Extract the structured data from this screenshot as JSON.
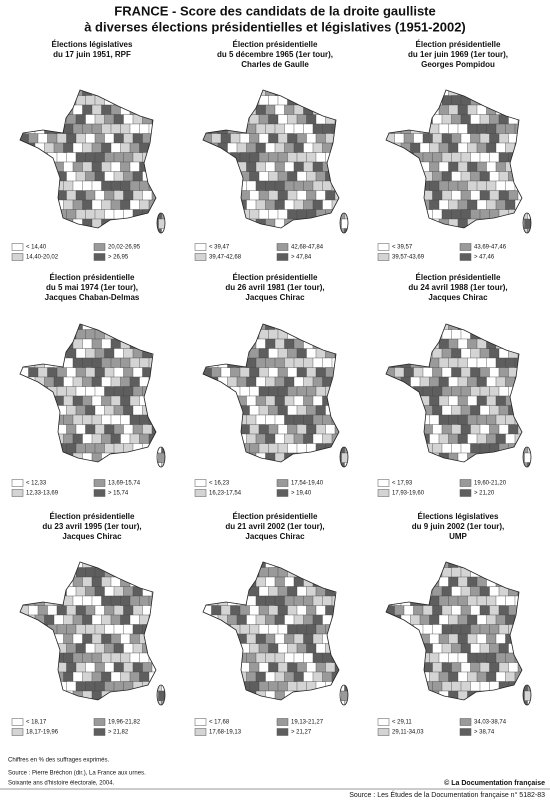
{
  "title": "FRANCE -  Score des candidats de la droite gaulliste",
  "subtitle": "à diverses élections présidentielles et législatives (1951-2002)",
  "maps": [
    {
      "title_lines": [
        "Élections législatives",
        "du 17 juin 1951, RPF"
      ],
      "legend": [
        "< 14,40",
        "14,40-20,02",
        "20,02-26,95",
        "> 26,95"
      ]
    },
    {
      "title_lines": [
        "Élection présidentielle",
        "du 5 décembre 1965 (1er tour),",
        "Charles de Gaulle"
      ],
      "legend": [
        "< 39,47",
        "39,47-42,68",
        "42,68-47,84",
        "> 47,84"
      ]
    },
    {
      "title_lines": [
        "Élection présidentielle",
        "du 1er juin 1969 (1er tour),",
        "Georges Pompidou"
      ],
      "legend": [
        "< 39,57",
        "39,57-43,69",
        "43,69-47,46",
        "> 47,46"
      ]
    },
    {
      "title_lines": [
        "Élection présidentielle",
        "du 5 mai 1974 (1er tour),",
        "Jacques Chaban-Delmas"
      ],
      "legend": [
        "< 12,33",
        "12,33-13,69",
        "13,69-15,74",
        "> 15,74"
      ]
    },
    {
      "title_lines": [
        "Élection présidentielle",
        "du 26 avril 1981 (1er tour),",
        "Jacques Chirac"
      ],
      "legend": [
        "< 16,23",
        "16,23-17,54",
        "17,54-19,40",
        "> 19,40"
      ]
    },
    {
      "title_lines": [
        "Élection présidentielle",
        "du 24 avril 1988 (1er tour),",
        "Jacques Chirac"
      ],
      "legend": [
        "< 17,93",
        "17,93-19,60",
        "19,60-21,20",
        "> 21,20"
      ]
    },
    {
      "title_lines": [
        "Élection présidentielle",
        "du 23 avril 1995 (1er tour),",
        "Jacques Chirac"
      ],
      "legend": [
        "< 18,17",
        "18,17-19,96",
        "19,96-21,82",
        "> 21,82"
      ]
    },
    {
      "title_lines": [
        "Élection présidentielle",
        "du 21 avril 2002 (1er tour),",
        "Jacques Chirac"
      ],
      "legend": [
        "< 17,68",
        "17,68-19,13",
        "19,13-21,27",
        "> 21,27"
      ]
    },
    {
      "title_lines": [
        "Élections législatives",
        "du 9 juin 2002 (1er tour),",
        "UMP"
      ],
      "legend": [
        "< 29,11",
        "29,11-34,03",
        "34,03-38,74",
        "> 38,74"
      ]
    }
  ],
  "note": "Chiffres en % des suffrages exprimés.",
  "source_lines": [
    "Source : Pierre Bréchon (dir.), La France aux urnes.",
    "Soixante ans d'histoire électorale, 2004."
  ],
  "credit": "© La Documentation française",
  "footer": "Source : Les Études de la Documentation française n° 5182-83"
}
